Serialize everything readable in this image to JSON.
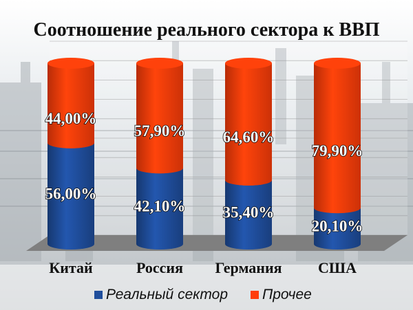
{
  "chart_data": {
    "type": "bar",
    "stacked": true,
    "percent_stacked": true,
    "style": "3d-cylinder",
    "title": "Соотношение реального сектора к ВВП",
    "categories": [
      "Китай",
      "Россия",
      "Германия",
      "США"
    ],
    "series": [
      {
        "name": "Реальный сектор",
        "color": "#1f4e9c",
        "values": [
          56.0,
          42.1,
          35.4,
          20.1
        ],
        "labels": [
          "56,00%",
          "42,10%",
          "35,40%",
          "20,10%"
        ]
      },
      {
        "name": "Прочее",
        "color": "#ff3d0a",
        "values": [
          44.0,
          57.9,
          64.6,
          79.9
        ],
        "labels": [
          "44,00%",
          "57,90%",
          "64,60%",
          "79,90%"
        ]
      }
    ],
    "ylim": [
      0,
      100
    ],
    "grid": true,
    "legend_position": "bottom"
  }
}
